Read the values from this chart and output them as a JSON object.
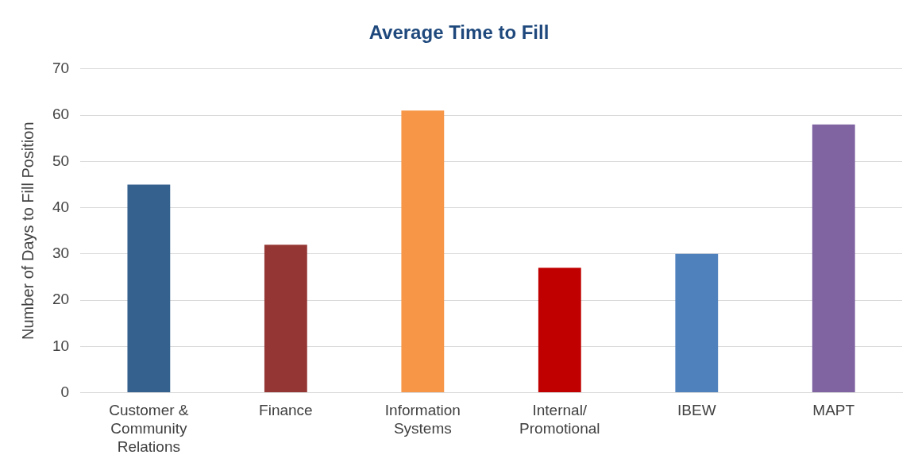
{
  "chart_data": {
    "type": "bar",
    "title": "Average Time to Fill",
    "ylabel": "Number of Days to Fill Position",
    "categories": [
      "Customer & Community Relations",
      "Finance",
      "Information Systems",
      "Internal/ Promotional",
      "IBEW",
      "MAPT"
    ],
    "values": [
      45,
      32,
      61,
      27,
      30,
      58
    ],
    "colors": [
      "#35618f",
      "#943634",
      "#f79646",
      "#c00000",
      "#4f81bd",
      "#8064a2"
    ],
    "ylim": [
      0,
      70
    ],
    "yticks": [
      0,
      10,
      20,
      30,
      40,
      50,
      60,
      70
    ],
    "grid": "y",
    "legend": false
  }
}
